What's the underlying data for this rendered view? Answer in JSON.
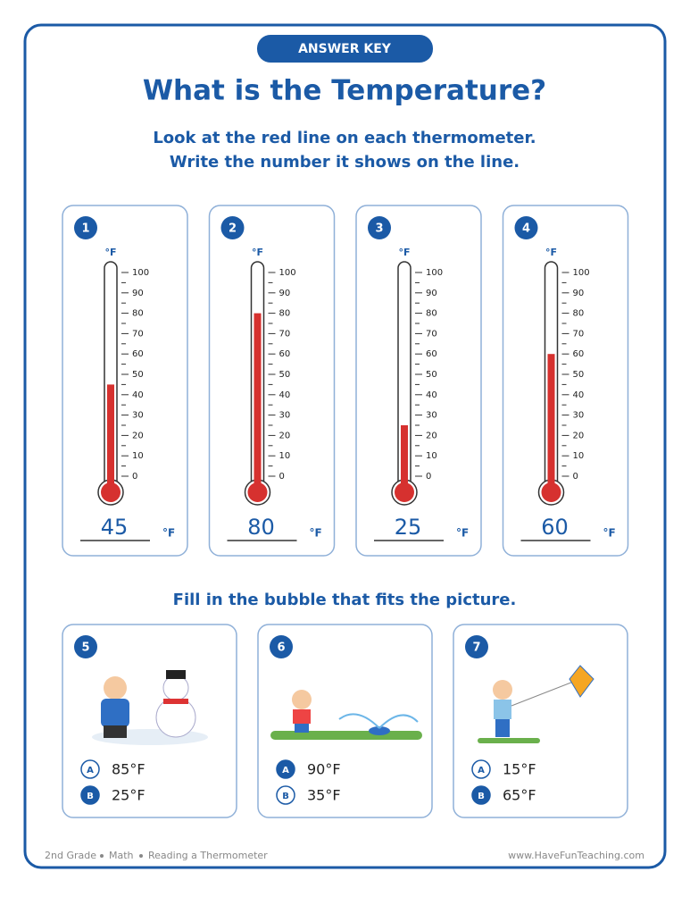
{
  "header": {
    "badge": "ANSWER KEY",
    "title": "What is the Temperature?",
    "instructions": [
      "Look at the red line on each thermometer.",
      "Write the number it shows on the line."
    ]
  },
  "thermometers": {
    "unit": "°F",
    "scale": [
      0,
      10,
      20,
      30,
      40,
      50,
      60,
      70,
      80,
      90,
      100
    ],
    "items": [
      {
        "number": 1,
        "reading": 45
      },
      {
        "number": 2,
        "reading": 80
      },
      {
        "number": 3,
        "reading": 25
      },
      {
        "number": 4,
        "reading": 60
      }
    ]
  },
  "bubbles": {
    "instruction": "Fill in the bubble that fits the picture.",
    "questions": [
      {
        "number": 5,
        "options": [
          {
            "letter": "A",
            "text": "85°F",
            "selected": false
          },
          {
            "letter": "B",
            "text": "25°F",
            "selected": true
          }
        ]
      },
      {
        "number": 6,
        "options": [
          {
            "letter": "A",
            "text": "90°F",
            "selected": true
          },
          {
            "letter": "B",
            "text": "35°F",
            "selected": false
          }
        ]
      },
      {
        "number": 7,
        "options": [
          {
            "letter": "A",
            "text": "15°F",
            "selected": false
          },
          {
            "letter": "B",
            "text": "65°F",
            "selected": true
          }
        ]
      }
    ]
  },
  "footer": {
    "left": [
      "2nd Grade",
      "Math",
      "Reading a Thermometer"
    ],
    "right": "www.HaveFunTeaching.com"
  }
}
